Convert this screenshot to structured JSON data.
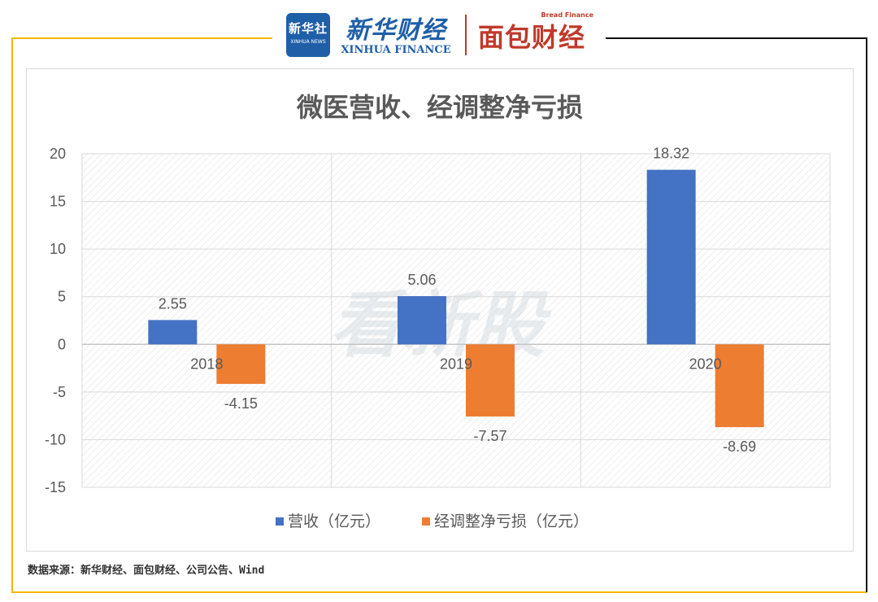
{
  "header": {
    "xinhua_logo": {
      "cn": "新华社",
      "en": "XINHUA NEWS"
    },
    "xinhua_finance_logo": {
      "cn": "新华财经",
      "en": "XINHUA FINANCE"
    },
    "bread_finance_logo": {
      "cn": "面包财经",
      "en": "Bread Finance"
    }
  },
  "chart_data": {
    "type": "bar",
    "title": "微医营收、经调整净亏损",
    "categories": [
      "2018",
      "2019",
      "2020"
    ],
    "series": [
      {
        "name": "营收（亿元）",
        "values": [
          2.55,
          5.06,
          18.32
        ],
        "color": "#4472c4",
        "labels": [
          "2.55",
          "5.06",
          "18.32"
        ]
      },
      {
        "name": "经调整净亏损（亿元）",
        "values": [
          -4.15,
          -7.57,
          -8.69
        ],
        "color": "#ed7d31",
        "labels": [
          "-4.15",
          "-7.57",
          "-8.69"
        ]
      }
    ],
    "ylim": [
      -15,
      20
    ],
    "yticks": [
      20,
      15,
      10,
      5,
      0,
      -5,
      -10,
      -15
    ],
    "legend_position": "bottom",
    "grid": true
  },
  "watermark": "看新股",
  "source_note": "数据来源：新华财经、面包财经、公司公告、Wind",
  "colors": {
    "frame": "#f2b705",
    "title": "#595959",
    "axis_text": "#595959"
  }
}
